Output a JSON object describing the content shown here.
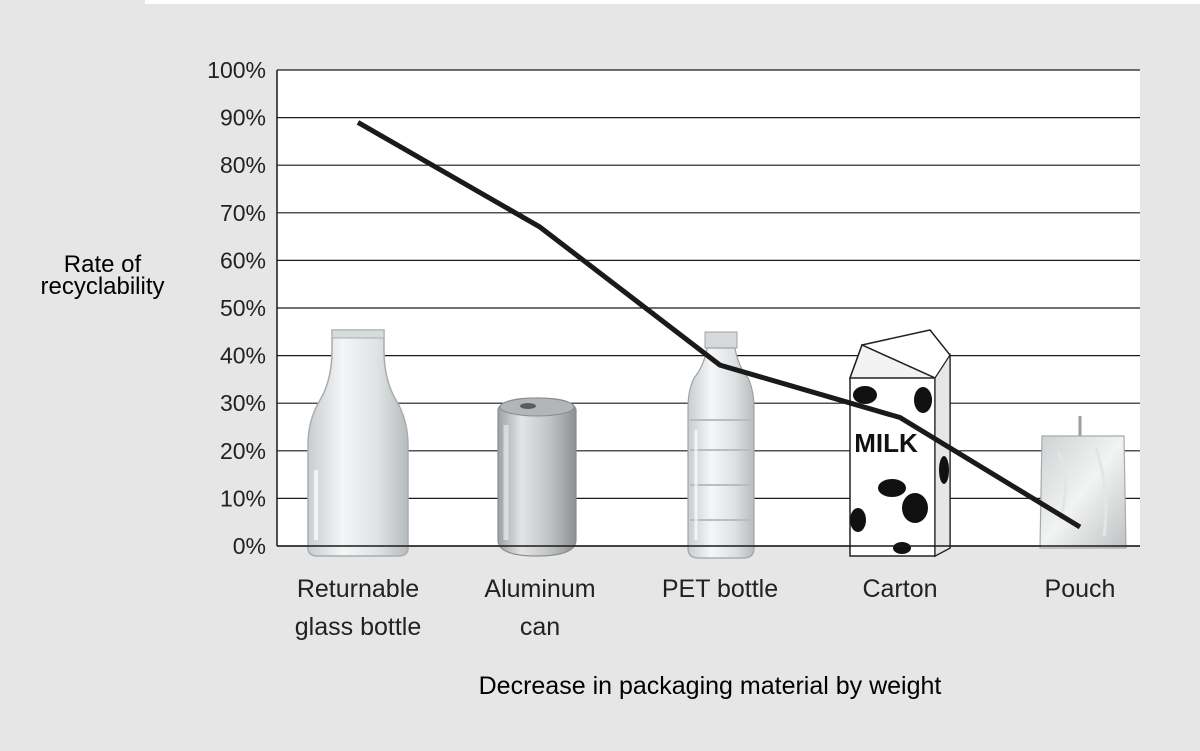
{
  "chart_data": {
    "type": "line",
    "categories": [
      "Returnable glass bottle",
      "Aluminum can",
      "PET bottle",
      "Carton",
      "Pouch"
    ],
    "category_lines": [
      [
        "Returnable",
        "glass bottle"
      ],
      [
        "Aluminum",
        "can"
      ],
      [
        "PET bottle"
      ],
      [
        "Carton"
      ],
      [
        "Pouch"
      ]
    ],
    "series": [
      {
        "values": [
          89,
          67,
          38,
          27,
          4
        ],
        "color": "#1a1a1a"
      }
    ],
    "ylabel_lines": [
      "Rate of",
      "recyclability"
    ],
    "xlabel": "Decrease in packaging material by weight",
    "ylim": [
      0,
      100
    ],
    "yticks": [
      "0%",
      "10%",
      "20%",
      "30%",
      "40%",
      "50%",
      "60%",
      "70%",
      "80%",
      "90%",
      "100%"
    ],
    "grid": true,
    "legend": "none",
    "background_images": [
      "glass-bottle-image",
      "aluminum-can-image",
      "pet-bottle-image",
      "milk-carton-image",
      "pouch-image"
    ],
    "carton_print": "MILK"
  }
}
